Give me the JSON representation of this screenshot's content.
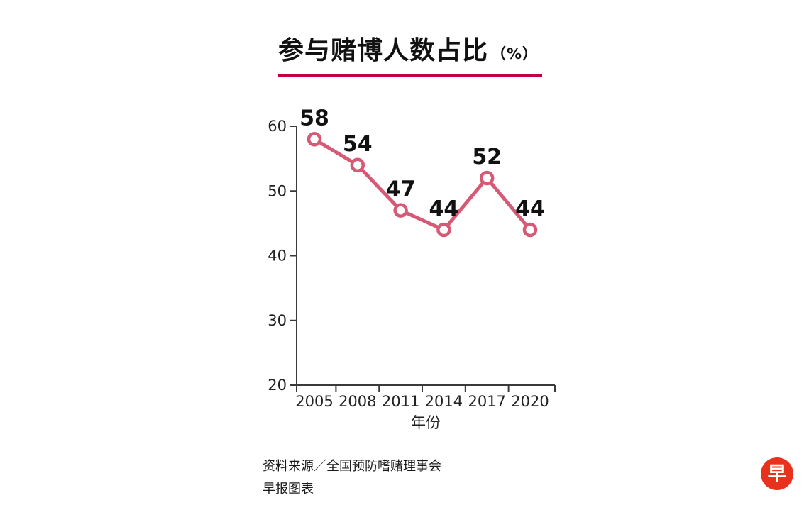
{
  "chart_data": {
    "type": "line",
    "title": "参与赌博人数占比",
    "title_unit": "（%）",
    "x": [
      "2005",
      "2008",
      "2011",
      "2014",
      "2017",
      "2020"
    ],
    "values": [
      58,
      54,
      47,
      44,
      52,
      44
    ],
    "xlabel": "年份",
    "ylabel": "",
    "ylim": [
      20,
      60
    ],
    "yticks": [
      20,
      30,
      40,
      50,
      60
    ],
    "grid": false,
    "legend": "none",
    "marker": "open-circle",
    "line_color": "#d65a76",
    "accent_color": "#c2003f",
    "axis_color": "#3a3a3a"
  },
  "footer": {
    "source": "资料来源／全国预防嗜赌理事会",
    "credit": "早报图表"
  },
  "logo": {
    "text": "早",
    "color": "#e8321e"
  }
}
